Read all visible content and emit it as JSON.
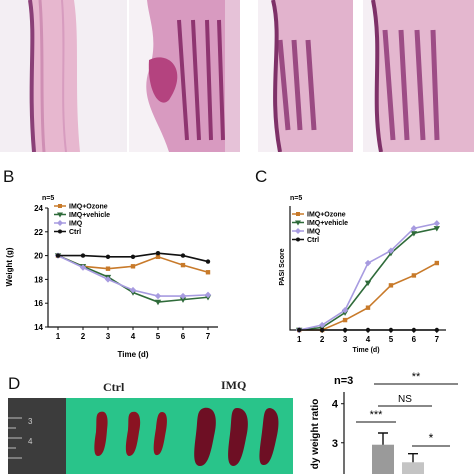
{
  "panels": {
    "b": {
      "letter": "B",
      "n_label": "n=5",
      "chart_data": {
        "type": "line",
        "xlabel": "Time (d)",
        "ylabel": "Weight (g)",
        "x": [
          1,
          2,
          3,
          4,
          5,
          6,
          7
        ],
        "xlim": [
          0.6,
          7.4
        ],
        "ylim": [
          14,
          24
        ],
        "yticks": [
          14,
          16,
          18,
          20,
          22,
          24
        ],
        "legend_position": "top-left",
        "series": [
          {
            "name": "IMQ+Ozone",
            "color": "#c87a2a",
            "marker": "square",
            "values": [
              20.0,
              19.1,
              18.9,
              19.1,
              19.9,
              19.2,
              18.6
            ]
          },
          {
            "name": "IMQ+vehicle",
            "color": "#2f6b3a",
            "marker": "triangle-down",
            "values": [
              20.0,
              19.1,
              18.2,
              16.9,
              16.1,
              16.3,
              16.5
            ]
          },
          {
            "name": "IMQ",
            "color": "#a79be0",
            "marker": "diamond",
            "values": [
              20.0,
              19.0,
              18.0,
              17.1,
              16.6,
              16.6,
              16.7
            ]
          },
          {
            "name": "Ctrl",
            "color": "#111111",
            "marker": "circle",
            "values": [
              20.0,
              20.0,
              19.9,
              19.9,
              20.2,
              20.0,
              19.5
            ]
          }
        ]
      }
    },
    "c": {
      "letter": "C",
      "n_label": "n=5",
      "chart_data": {
        "type": "line",
        "xlabel": "Time (d)",
        "ylabel": "PASI Score",
        "x": [
          1,
          2,
          3,
          4,
          5,
          6,
          7
        ],
        "xlim": [
          0.6,
          7.4
        ],
        "ylim": [
          0,
          10
        ],
        "yticks": [],
        "legend_position": "top-left",
        "series": [
          {
            "name": "IMQ+Ozone",
            "color": "#c87a2a",
            "marker": "square",
            "values": [
              0,
              0,
              0.8,
              1.8,
              3.6,
              4.4,
              5.4
            ]
          },
          {
            "name": "IMQ+vehicle",
            "color": "#2f6b3a",
            "marker": "triangle-down",
            "values": [
              0,
              0.2,
              1.4,
              3.8,
              6.2,
              7.8,
              8.2
            ]
          },
          {
            "name": "IMQ",
            "color": "#a79be0",
            "marker": "diamond",
            "values": [
              0,
              0.4,
              1.6,
              5.4,
              6.4,
              8.2,
              8.6
            ]
          },
          {
            "name": "Ctrl",
            "color": "#111111",
            "marker": "circle",
            "values": [
              0,
              0,
              0,
              0,
              0,
              0,
              0
            ]
          }
        ]
      }
    },
    "d": {
      "letter": "D",
      "photo": {
        "label_ctrl": "Ctrl",
        "label_imq": "IMQ",
        "ruler_marks": [
          "3",
          "4"
        ]
      },
      "n_label": "n=3",
      "ylabel": "dy weight ratio",
      "yticks": [
        "4",
        "3"
      ],
      "sig_top": "**",
      "sig_mid": "NS",
      "sig_left": "***",
      "sig_right": "*",
      "chart_data": {
        "type": "bar",
        "ylabel": "dy weight ratio",
        "ylim": [
          2.2,
          4.3
        ],
        "categories": [
          "",
          "",
          ""
        ],
        "values": [
          2.2,
          2.95,
          2.5
        ],
        "errors": [
          0,
          0.3,
          0.22
        ],
        "colors": [
          "#444444",
          "#9a9a9a",
          "#c4c4c4"
        ]
      }
    }
  }
}
